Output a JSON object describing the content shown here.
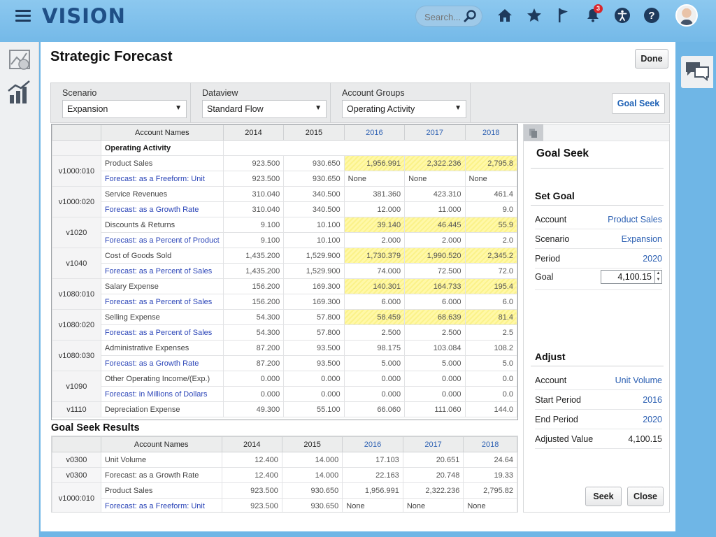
{
  "header": {
    "logo": "VISION",
    "search_placeholder": "Search...",
    "notification_count": "3"
  },
  "page": {
    "title": "Strategic Forecast",
    "done_label": "Done"
  },
  "filters": {
    "scenario": {
      "label": "Scenario",
      "value": "Expansion"
    },
    "dataview": {
      "label": "Dataview",
      "value": "Standard Flow"
    },
    "account_groups": {
      "label": "Account Groups",
      "value": "Operating Activity"
    },
    "goal_seek_label": "Goal Seek"
  },
  "grid": {
    "headers": [
      "Account Names",
      "2014",
      "2015",
      "2016",
      "2017",
      "2018"
    ],
    "group_label": "Operating Activity",
    "rows": [
      {
        "code": "v1000:010",
        "name": "Product Sales",
        "vals": [
          "923.500",
          "930.650",
          "1,956.991",
          "2,322.236",
          "2,795.8"
        ],
        "hl": [
          false,
          false,
          true,
          true,
          true
        ]
      },
      {
        "code": "",
        "name": "Forecast: as a Freeform: Unit",
        "vals": [
          "923.500",
          "930.650",
          "None",
          "None",
          "None"
        ],
        "hl": [
          false,
          false,
          false,
          false,
          false
        ],
        "blue": true
      },
      {
        "code": "v1000:020",
        "name": "Service Revenues",
        "vals": [
          "310.040",
          "340.500",
          "381.360",
          "423.310",
          "461.4"
        ],
        "hl": [
          false,
          false,
          false,
          false,
          false
        ]
      },
      {
        "code": "",
        "name": "Forecast: as a Growth Rate",
        "vals": [
          "310.040",
          "340.500",
          "12.000",
          "11.000",
          "9.0"
        ],
        "hl": [
          false,
          false,
          false,
          false,
          false
        ],
        "blue": true
      },
      {
        "code": "v1020",
        "name": "Discounts & Returns",
        "vals": [
          "9.100",
          "10.100",
          "39.140",
          "46.445",
          "55.9"
        ],
        "hl": [
          false,
          false,
          true,
          true,
          true
        ]
      },
      {
        "code": "",
        "name": "Forecast: as a Percent of Product",
        "vals": [
          "9.100",
          "10.100",
          "2.000",
          "2.000",
          "2.0"
        ],
        "hl": [
          false,
          false,
          false,
          false,
          false
        ],
        "blue": true
      },
      {
        "code": "v1040",
        "name": "Cost of Goods Sold",
        "vals": [
          "1,435.200",
          "1,529.900",
          "1,730.379",
          "1,990.520",
          "2,345.2"
        ],
        "hl": [
          false,
          false,
          true,
          true,
          true
        ]
      },
      {
        "code": "",
        "name": "Forecast: as a Percent of Sales",
        "vals": [
          "1,435.200",
          "1,529.900",
          "74.000",
          "72.500",
          "72.0"
        ],
        "hl": [
          false,
          false,
          false,
          false,
          false
        ],
        "blue": true
      },
      {
        "code": "v1080:010",
        "name": "Salary Expense",
        "vals": [
          "156.200",
          "169.300",
          "140.301",
          "164.733",
          "195.4"
        ],
        "hl": [
          false,
          false,
          true,
          true,
          true
        ]
      },
      {
        "code": "",
        "name": "Forecast: as a Percent of Sales",
        "vals": [
          "156.200",
          "169.300",
          "6.000",
          "6.000",
          "6.0"
        ],
        "hl": [
          false,
          false,
          false,
          false,
          false
        ],
        "blue": true
      },
      {
        "code": "v1080:020",
        "name": "Selling Expense",
        "vals": [
          "54.300",
          "57.800",
          "58.459",
          "68.639",
          "81.4"
        ],
        "hl": [
          false,
          false,
          true,
          true,
          true
        ]
      },
      {
        "code": "",
        "name": "Forecast: as a Percent of Sales",
        "vals": [
          "54.300",
          "57.800",
          "2.500",
          "2.500",
          "2.5"
        ],
        "hl": [
          false,
          false,
          false,
          false,
          false
        ],
        "blue": true
      },
      {
        "code": "v1080:030",
        "name": "Administrative Expenses",
        "vals": [
          "87.200",
          "93.500",
          "98.175",
          "103.084",
          "108.2"
        ],
        "hl": [
          false,
          false,
          false,
          false,
          false
        ]
      },
      {
        "code": "",
        "name": "Forecast: as a Growth Rate",
        "vals": [
          "87.200",
          "93.500",
          "5.000",
          "5.000",
          "5.0"
        ],
        "hl": [
          false,
          false,
          false,
          false,
          false
        ],
        "blue": true
      },
      {
        "code": "v1090",
        "name": "Other Operating Income/(Exp.)",
        "vals": [
          "0.000",
          "0.000",
          "0.000",
          "0.000",
          "0.0"
        ],
        "hl": [
          false,
          false,
          false,
          false,
          false
        ]
      },
      {
        "code": "",
        "name": "Forecast: in Millions of Dollars",
        "vals": [
          "0.000",
          "0.000",
          "0.000",
          "0.000",
          "0.0"
        ],
        "hl": [
          false,
          false,
          false,
          false,
          false
        ],
        "blue": true
      },
      {
        "code": "v1110",
        "name": "Depreciation Expense",
        "vals": [
          "49.300",
          "55.100",
          "66.060",
          "111.060",
          "144.0"
        ],
        "hl": [
          false,
          false,
          false,
          false,
          false
        ]
      }
    ]
  },
  "results": {
    "title": "Goal Seek Results",
    "headers": [
      "Account Names",
      "2014",
      "2015",
      "2016",
      "2017",
      "2018"
    ],
    "rows": [
      {
        "code": "v0300",
        "name": "Unit Volume",
        "vals": [
          "12.400",
          "14.000",
          "17.103",
          "20.651",
          "24.64"
        ]
      },
      {
        "code": "v0300",
        "name": "Forecast: as a Growth Rate",
        "vals": [
          "12.400",
          "14.000",
          "22.163",
          "20.748",
          "19.33"
        ]
      },
      {
        "code": "v1000:010",
        "name": "Product Sales",
        "vals": [
          "923.500",
          "930.650",
          "1,956.991",
          "2,322.236",
          "2,795.82"
        ]
      },
      {
        "code": "",
        "name": "Forecast: as a Freeform: Unit",
        "vals": [
          "923.500",
          "930.650",
          "None",
          "None",
          "None"
        ],
        "blue": true
      }
    ]
  },
  "goal_seek": {
    "title": "Goal Seek",
    "set_goal_title": "Set Goal",
    "set_goal": [
      {
        "key": "Account",
        "value": "Product Sales"
      },
      {
        "key": "Scenario",
        "value": "Expansion"
      },
      {
        "key": "Period",
        "value": "2020"
      }
    ],
    "goal_label": "Goal",
    "goal_value": "4,100.15",
    "adjust_title": "Adjust",
    "adjust": [
      {
        "key": "Account",
        "value": "Unit Volume"
      },
      {
        "key": "Start Period",
        "value": "2016"
      },
      {
        "key": "End Period",
        "value": "2020"
      }
    ],
    "adjusted_value_label": "Adjusted Value",
    "adjusted_value": "4,100.15",
    "seek_label": "Seek",
    "close_label": "Close"
  },
  "colors": {
    "accent_blue": "#2b5fb2",
    "highlight_yellow": "#fbf28a",
    "topbar": "#74b9e8"
  }
}
